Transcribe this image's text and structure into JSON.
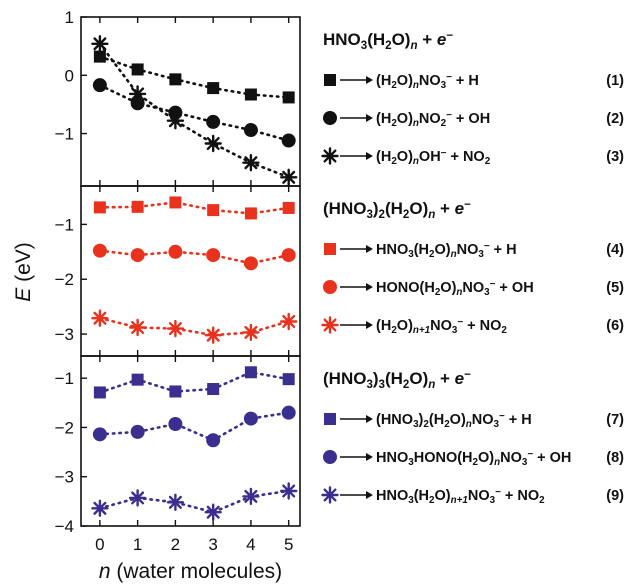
{
  "chart_data": {
    "type": "line",
    "x": [
      0,
      1,
      2,
      3,
      4,
      5
    ],
    "xlabel": "n (water molecules)",
    "xlabel_italic": "n",
    "xlabel_rest": " (water molecules)",
    "ylabel": "E (eV)",
    "ylabel_italic": "E",
    "ylabel_rest": " (eV)",
    "xlim": [
      -0.5,
      5.3
    ],
    "panels": [
      {
        "name": "HNO3(H2O)n + e−",
        "header_parts": [
          [
            "HNO",
            ""
          ],
          [
            "3",
            "sub"
          ],
          [
            "(H",
            ""
          ],
          [
            "2",
            "sub"
          ],
          [
            "O)",
            ""
          ],
          [
            "n",
            "subi"
          ],
          [
            " + ",
            ""
          ],
          [
            "e",
            "i"
          ],
          [
            "−",
            "sup"
          ]
        ],
        "ylim": [
          -1.9,
          1.0
        ],
        "yticks": [
          1,
          0,
          -1
        ],
        "color": "#111111",
        "series": [
          {
            "name": "(H2O)nNO3− + H",
            "marker": "square",
            "index": "(1)",
            "label_parts": [
              [
                "(H",
                ""
              ],
              [
                "2",
                "sub"
              ],
              [
                "O)",
                ""
              ],
              [
                "n",
                "subi"
              ],
              [
                "NO",
                ""
              ],
              [
                "3",
                "sub"
              ],
              [
                "−",
                "sup"
              ],
              [
                " + H",
                ""
              ]
            ],
            "values": [
              0.32,
              0.1,
              -0.07,
              -0.22,
              -0.33,
              -0.38
            ]
          },
          {
            "name": "(H2O)nNO2− + OH",
            "marker": "circle",
            "index": "(2)",
            "label_parts": [
              [
                "(H",
                ""
              ],
              [
                "2",
                "sub"
              ],
              [
                "O)",
                ""
              ],
              [
                "n",
                "subi"
              ],
              [
                "NO",
                ""
              ],
              [
                "2",
                "sub"
              ],
              [
                "−",
                "sup"
              ],
              [
                " + OH",
                ""
              ]
            ],
            "values": [
              -0.17,
              -0.48,
              -0.64,
              -0.8,
              -0.94,
              -1.12
            ]
          },
          {
            "name": "(H2O)nOH− + NO2",
            "marker": "star",
            "index": "(3)",
            "label_parts": [
              [
                "(H",
                ""
              ],
              [
                "2",
                "sub"
              ],
              [
                "O)",
                ""
              ],
              [
                "n",
                "subi"
              ],
              [
                "OH",
                ""
              ],
              [
                "−",
                "sup"
              ],
              [
                " + NO",
                ""
              ],
              [
                "2",
                "sub"
              ]
            ],
            "values": [
              0.54,
              -0.32,
              -0.78,
              -1.17,
              -1.5,
              -1.75
            ]
          }
        ]
      },
      {
        "name": "(HNO3)2(H2O)n + e−",
        "header_parts": [
          [
            "(HNO",
            ""
          ],
          [
            "3",
            "sub"
          ],
          [
            ")",
            ""
          ],
          [
            "2",
            "sub"
          ],
          [
            "(H",
            ""
          ],
          [
            "2",
            "sub"
          ],
          [
            "O)",
            ""
          ],
          [
            "n",
            "subi"
          ],
          [
            " + ",
            ""
          ],
          [
            "e",
            "i"
          ],
          [
            "−",
            "sup"
          ]
        ],
        "ylim": [
          -3.4,
          -0.3
        ],
        "yticks": [
          -1,
          -2,
          -3
        ],
        "color": "#e8321e",
        "series": [
          {
            "name": "HNO3(H2O)nNO3− + H",
            "marker": "square",
            "index": "(4)",
            "label_parts": [
              [
                "HNO",
                ""
              ],
              [
                "3",
                "sub"
              ],
              [
                "(H",
                ""
              ],
              [
                "2",
                "sub"
              ],
              [
                "O)",
                ""
              ],
              [
                "n",
                "subi"
              ],
              [
                "NO",
                ""
              ],
              [
                "3",
                "sub"
              ],
              [
                "−",
                "sup"
              ],
              [
                " + H",
                ""
              ]
            ],
            "values": [
              -0.69,
              -0.68,
              -0.6,
              -0.74,
              -0.8,
              -0.7
            ]
          },
          {
            "name": "HONO(H2O)nNO3− + OH",
            "marker": "circle",
            "index": "(5)",
            "label_parts": [
              [
                "HONO(H",
                ""
              ],
              [
                "2",
                "sub"
              ],
              [
                "O)",
                ""
              ],
              [
                "n",
                "subi"
              ],
              [
                "NO",
                ""
              ],
              [
                "3",
                "sub"
              ],
              [
                "−",
                "sup"
              ],
              [
                " + OH",
                ""
              ]
            ],
            "values": [
              -1.48,
              -1.56,
              -1.5,
              -1.56,
              -1.71,
              -1.56
            ]
          },
          {
            "name": "(H2O)n+1NO3− + NO2",
            "marker": "star",
            "index": "(6)",
            "label_parts": [
              [
                "(H",
                ""
              ],
              [
                "2",
                "sub"
              ],
              [
                "O)",
                ""
              ],
              [
                "n+1",
                "subi"
              ],
              [
                "NO",
                ""
              ],
              [
                "3",
                "sub"
              ],
              [
                "−",
                "sup"
              ],
              [
                " + NO",
                ""
              ],
              [
                "2",
                "sub"
              ]
            ],
            "values": [
              -2.71,
              -2.88,
              -2.9,
              -3.02,
              -2.97,
              -2.77
            ]
          }
        ]
      },
      {
        "name": "(HNO3)3(H2O)n + e−",
        "header_parts": [
          [
            "(HNO",
            ""
          ],
          [
            "3",
            "sub"
          ],
          [
            ")",
            ""
          ],
          [
            "3",
            "sub"
          ],
          [
            "(H",
            ""
          ],
          [
            "2",
            "sub"
          ],
          [
            "O)",
            ""
          ],
          [
            "n",
            "subi"
          ],
          [
            " + ",
            ""
          ],
          [
            "e",
            "i"
          ],
          [
            "−",
            "sup"
          ]
        ],
        "ylim": [
          -4.0,
          -0.55
        ],
        "yticks": [
          -1,
          -2,
          -3,
          -4
        ],
        "color": "#3a2e8f",
        "series": [
          {
            "name": "(HNO3)2(H2O)nNO3− + H",
            "marker": "square",
            "index": "(7)",
            "label_parts": [
              [
                "(HNO",
                ""
              ],
              [
                "3",
                "sub"
              ],
              [
                ")",
                ""
              ],
              [
                "2",
                "sub"
              ],
              [
                "(H",
                ""
              ],
              [
                "2",
                "sub"
              ],
              [
                "O)",
                ""
              ],
              [
                "n",
                "subi"
              ],
              [
                "NO",
                ""
              ],
              [
                "3",
                "sub"
              ],
              [
                "−",
                "sup"
              ],
              [
                " + H",
                ""
              ]
            ],
            "values": [
              -1.29,
              -1.03,
              -1.27,
              -1.22,
              -0.88,
              -1.02
            ]
          },
          {
            "name": "HNO3HONO(H2O)nNO3− + OH",
            "marker": "circle",
            "index": "(8)",
            "label_parts": [
              [
                "HNO",
                ""
              ],
              [
                "3",
                "sub"
              ],
              [
                "HONO(H",
                ""
              ],
              [
                "2",
                "sub"
              ],
              [
                "O)",
                ""
              ],
              [
                "n",
                "subi"
              ],
              [
                "NO",
                ""
              ],
              [
                "3",
                "sub"
              ],
              [
                "−",
                "sup"
              ],
              [
                " + OH",
                ""
              ]
            ],
            "values": [
              -2.14,
              -2.09,
              -1.93,
              -2.26,
              -1.82,
              -1.7
            ]
          },
          {
            "name": "HNO3(H2O)n+1NO3− + NO2",
            "marker": "star",
            "index": "(9)",
            "label_parts": [
              [
                "HNO",
                ""
              ],
              [
                "3",
                "sub"
              ],
              [
                "(H",
                ""
              ],
              [
                "2",
                "sub"
              ],
              [
                "O)",
                ""
              ],
              [
                "n+1",
                "subi"
              ],
              [
                "NO",
                ""
              ],
              [
                "3",
                "sub"
              ],
              [
                "−",
                "sup"
              ],
              [
                " + NO",
                ""
              ],
              [
                "2",
                "sub"
              ]
            ],
            "values": [
              -3.64,
              -3.43,
              -3.52,
              -3.72,
              -3.4,
              -3.29
            ]
          }
        ]
      }
    ]
  }
}
